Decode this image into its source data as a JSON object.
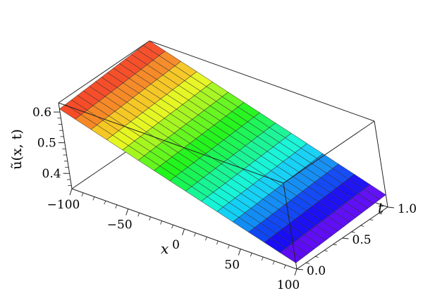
{
  "chart_data": {
    "type": "surface3d",
    "title": "",
    "xlabel": "x",
    "ylabel": "t",
    "zlabel": "ũ(x, t)",
    "xlim": [
      -100,
      100
    ],
    "tlim": [
      0.0,
      1.0
    ],
    "zlim": [
      0.35,
      0.63
    ],
    "x_ticks": [
      -100,
      -50,
      0,
      50,
      100
    ],
    "x_tick_labels": [
      "−100",
      "−50",
      "0",
      "50",
      "100"
    ],
    "t_ticks": [
      0.0,
      0.5,
      1.0
    ],
    "t_tick_labels": [
      "0.0",
      "0.5",
      "1.0"
    ],
    "z_ticks": [
      0.4,
      0.5,
      0.6
    ],
    "z_tick_labels": [
      "0.4",
      "0.5",
      "0.6"
    ],
    "surface": {
      "grid_lines": 15,
      "colormap": "rainbow",
      "corners": [
        {
          "x": -100,
          "t": 0.0,
          "u": 0.61
        },
        {
          "x": 100,
          "t": 0.0,
          "u": 0.37
        },
        {
          "x": -100,
          "t": 1.0,
          "u": 0.63
        },
        {
          "x": 100,
          "t": 1.0,
          "u": 0.39
        }
      ]
    }
  }
}
